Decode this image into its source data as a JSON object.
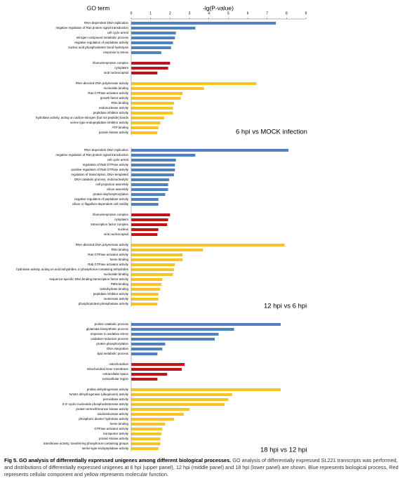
{
  "chart_data": [
    {
      "type": "bar",
      "orientation": "horizontal",
      "ylabel": "GO term",
      "xlabel": "-lg(P-value)",
      "label": "6 hpi vs MOCK infection",
      "xlim": [
        0,
        9
      ],
      "xticks": [
        0,
        1,
        2,
        3,
        4,
        5,
        6,
        7,
        8,
        9
      ],
      "groups": [
        {
          "color": "#4f81bd",
          "categories": [
            "RNA-dependent DNA replication",
            "negative regulation of Ras protein signal transduction",
            "cell cycle arrest",
            "nitrogen compound metabolic process",
            "negative regulation of peptidase activity",
            "nucleic acid phosphodiester bond hydrolysis",
            "response to stress"
          ],
          "values": [
            7.45,
            3.3,
            2.3,
            2.25,
            2.15,
            2.05,
            1.55
          ]
        },
        {
          "color": "#c0141c",
          "categories": [
            "ribonucleoprotein complex",
            "cytoplasm",
            "viral nucleocapsid"
          ],
          "values": [
            2.0,
            1.9,
            1.35
          ]
        },
        {
          "color": "#f7c325",
          "categories": [
            "RNA-directed DNA polymerase activity",
            "nucleotide binding",
            "Ras GTPase activator activity",
            "growth factor activity",
            "RNA binding",
            "endonuclease activity",
            "peptidase inhibitor activity",
            "hydrolase activity, acting on carbon-nitrogen (but not peptide) bonds",
            "serine-type endopeptidase inhibitor activity",
            "ATP binding",
            "protein kinase activity"
          ],
          "values": [
            6.45,
            3.75,
            2.65,
            2.55,
            2.2,
            2.15,
            2.15,
            1.7,
            1.5,
            1.4,
            1.35
          ]
        }
      ]
    },
    {
      "type": "bar",
      "orientation": "horizontal",
      "label": "12 hpi vs 6 hpi",
      "xlim": [
        0,
        9
      ],
      "groups": [
        {
          "color": "#4f81bd",
          "categories": [
            "RNA-dependent DNA replication",
            "negative regulation of Ras protein signal transduction",
            "cell cycle arrest",
            "regulation of Rab GTPase activity",
            "positive regulation of Rab GTPase activity",
            "regulation of transcription, DNA-templated",
            "DNA catabolic process, endonucleolytic",
            "cell projection assembly",
            "cilium assembly",
            "protein dephosphorylation",
            "negative regulation of peptidase activity",
            "cilium or flagellum-dependent cell motility"
          ],
          "values": [
            8.1,
            3.3,
            2.3,
            2.25,
            2.25,
            2.2,
            1.95,
            1.9,
            1.9,
            1.75,
            1.4,
            1.4
          ]
        },
        {
          "color": "#c0141c",
          "categories": [
            "ribonucleoprotein complex",
            "cytoplasm",
            "transcription factor complex",
            "nucleus",
            "viral nucleocapsid"
          ],
          "values": [
            2.0,
            1.9,
            1.85,
            1.4,
            1.35
          ]
        },
        {
          "color": "#f7c325",
          "categories": [
            "RNA-directed DNA polymerase activity",
            "RNA binding",
            "Ras GTPase activator activity",
            "heme binding",
            "Rab GTPase activator activity",
            "hydrolase activity, acting on acid anhydrides, in phosphorus-containing anhydrides",
            "nucleotide binding",
            "sequence-specific DNA binding transcription factor activity",
            "PMN binding",
            "carbohydrate binding",
            "peptidase inhibitor activity",
            "isomerase activity",
            "phosphoprotein phosphatase activity"
          ],
          "values": [
            7.9,
            3.7,
            2.65,
            2.65,
            2.25,
            2.2,
            2.15,
            1.6,
            1.55,
            1.5,
            1.4,
            1.4,
            1.35
          ]
        }
      ]
    },
    {
      "type": "bar",
      "orientation": "horizontal",
      "label": "18 hpi vs 12 hpi",
      "xlim": [
        0,
        9
      ],
      "groups": [
        {
          "color": "#4f81bd",
          "categories": [
            "proline catabolic process",
            "glutamate biosynthetic process",
            "response to oxidative stress",
            "oxidation-reduction process",
            "protein phosphorylation",
            "DNA integration",
            "lipid metabolic process"
          ],
          "values": [
            7.7,
            5.3,
            4.5,
            4.3,
            1.75,
            1.6,
            1.35
          ]
        },
        {
          "color": "#c0141c",
          "categories": [
            "mitochondrion",
            "mitochondrial inner membrane",
            "extracellular space",
            "extracellular region"
          ],
          "values": [
            2.75,
            2.6,
            1.85,
            1.35
          ]
        },
        {
          "color": "#f7c325",
          "categories": [
            "proline dehydrogenase activity",
            "NADH dehydrogenase (ubiquinone) activity",
            "peroxidase activity",
            "3',5'-cyclic-nucleotide phosphodiesterase activity",
            "protein serine/threonine kinase activity",
            "oxidoreductase activity",
            "phosphoric diester hydrolase activity",
            "heme binding",
            "GTPase activator activity",
            "transporter activity",
            "protein kinase activity",
            "transferase activity, transferring phosphorus-containing groups",
            "serine-type endopeptidase activity"
          ],
          "values": [
            7.7,
            5.2,
            5.0,
            4.8,
            3.0,
            2.7,
            2.2,
            1.75,
            1.6,
            1.55,
            1.5,
            1.5,
            1.4
          ]
        }
      ]
    }
  ],
  "caption": {
    "title": "Fig 5. GO analysis of differentially expressed unigenes among different biological processes.",
    "text": "GO analysis of differentially expressed SL221 transcripts was performed, and distributions of differentially expressed unigenes at 6 hpi (upper panel), 12 hpi (middle panel) and 18 hpi (lower panel) are shown. Blue represents biological process, Red represents cellular component and yellow represents molecular function."
  }
}
